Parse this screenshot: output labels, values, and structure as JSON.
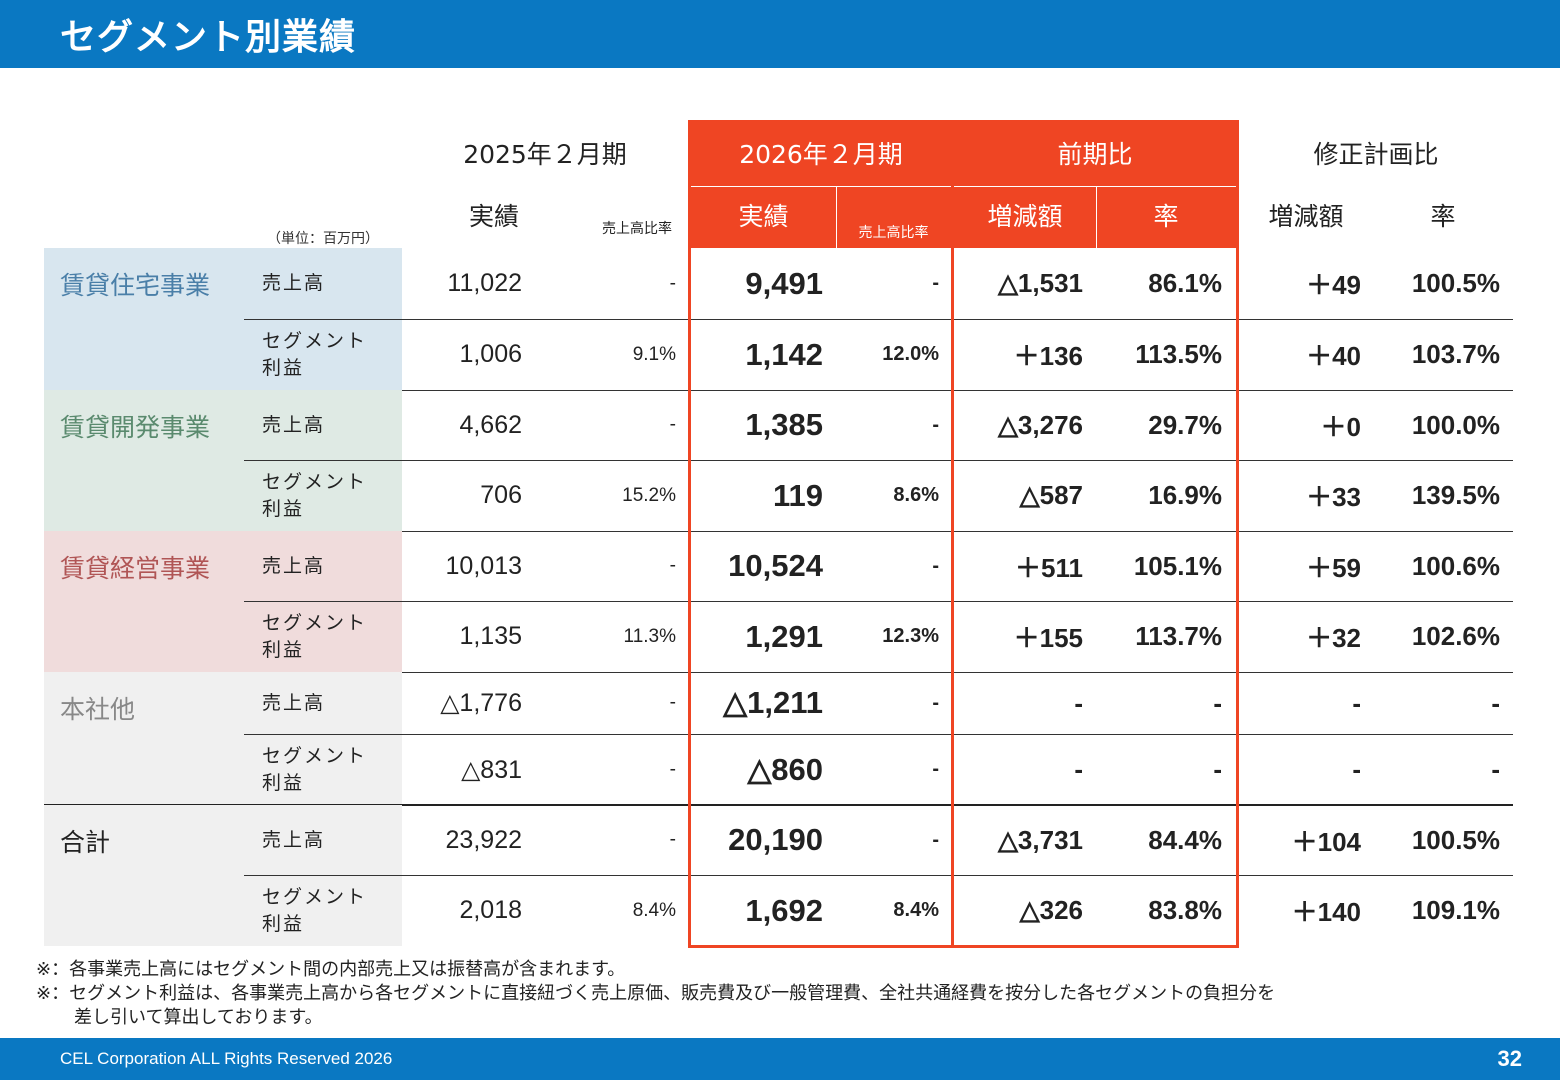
{
  "header": {
    "title": "セグメント別業績"
  },
  "table": {
    "unit": "（単位：百万円）",
    "period_headers": {
      "prev": "2025年２月期",
      "curr": "2026年２月期",
      "yoy": "前期比",
      "plan": "修正計画比"
    },
    "sub_headers": {
      "prev_actual": "実績",
      "prev_ratio": "売上高比率",
      "curr_actual": "実績",
      "curr_ratio": "売上高比率",
      "yoy_change": "増減額",
      "yoy_rate": "率",
      "plan_change": "増減額",
      "plan_rate": "率"
    },
    "segments": [
      {
        "name": "賃貸住宅事業",
        "color": "#4a7fa8",
        "bg": "#d8e6ef",
        "rows": [
          {
            "label": "売上高",
            "prev": "11,022",
            "prev_ratio": "-",
            "curr": "9,491",
            "curr_ratio": "-",
            "yoy_change": "△1,531",
            "yoy_rate": "86.1%",
            "plan_change": "＋49",
            "plan_rate": "100.5%"
          },
          {
            "label_line1": "セグメント",
            "label_line2": "利益",
            "prev": "1,006",
            "prev_ratio": "9.1%",
            "curr": "1,142",
            "curr_ratio": "12.0%",
            "yoy_change": "＋136",
            "yoy_rate": "113.5%",
            "plan_change": "＋40",
            "plan_rate": "103.7%"
          }
        ]
      },
      {
        "name": "賃貸開発事業",
        "color": "#5a8a6e",
        "bg": "#dfeae4",
        "rows": [
          {
            "label": "売上高",
            "prev": "4,662",
            "prev_ratio": "-",
            "curr": "1,385",
            "curr_ratio": "-",
            "yoy_change": "△3,276",
            "yoy_rate": "29.7%",
            "plan_change": "＋0",
            "plan_rate": "100.0%"
          },
          {
            "label_line1": "セグメント",
            "label_line2": "利益",
            "prev": "706",
            "prev_ratio": "15.2%",
            "curr": "119",
            "curr_ratio": "8.6%",
            "yoy_change": "△587",
            "yoy_rate": "16.9%",
            "plan_change": "＋33",
            "plan_rate": "139.5%"
          }
        ]
      },
      {
        "name": "賃貸経営事業",
        "color": "#b05555",
        "bg": "#f0dcdc",
        "rows": [
          {
            "label": "売上高",
            "prev": "10,013",
            "prev_ratio": "-",
            "curr": "10,524",
            "curr_ratio": "-",
            "yoy_change": "＋511",
            "yoy_rate": "105.1%",
            "plan_change": "＋59",
            "plan_rate": "100.6%"
          },
          {
            "label_line1": "セグメント",
            "label_line2": "利益",
            "prev": "1,135",
            "prev_ratio": "11.3%",
            "curr": "1,291",
            "curr_ratio": "12.3%",
            "yoy_change": "＋155",
            "yoy_rate": "113.7%",
            "plan_change": "＋32",
            "plan_rate": "102.6%"
          }
        ]
      },
      {
        "name": "本社他",
        "color": "#888888",
        "bg": "#f0f0f0",
        "rows": [
          {
            "label": "売上高",
            "prev": "△1,776",
            "prev_ratio": "-",
            "curr": "△1,211",
            "curr_ratio": "-",
            "yoy_change": "-",
            "yoy_rate": "-",
            "plan_change": "-",
            "plan_rate": "-"
          },
          {
            "label_line1": "セグメント",
            "label_line2": "利益",
            "prev": "△831",
            "prev_ratio": "-",
            "curr": "△860",
            "curr_ratio": "-",
            "yoy_change": "-",
            "yoy_rate": "-",
            "plan_change": "-",
            "plan_rate": "-"
          }
        ]
      },
      {
        "name": "合計",
        "color": "#222222",
        "bg": "#f0f0f0",
        "rows": [
          {
            "label": "売上高",
            "prev": "23,922",
            "prev_ratio": "-",
            "curr": "20,190",
            "curr_ratio": "-",
            "yoy_change": "△3,731",
            "yoy_rate": "84.4%",
            "plan_change": "＋104",
            "plan_rate": "100.5%"
          },
          {
            "label_line1": "セグメント",
            "label_line2": "利益",
            "prev": "2,018",
            "prev_ratio": "8.4%",
            "curr": "1,692",
            "curr_ratio": "8.4%",
            "yoy_change": "△326",
            "yoy_rate": "83.8%",
            "plan_change": "＋140",
            "plan_rate": "109.1%"
          }
        ]
      }
    ]
  },
  "notes": {
    "line1": "※：各事業売上高にはセグメント間の内部売上又は振替高が含まれます。",
    "line2": "※：セグメント利益は、各事業売上高から各セグメントに直接紐づく売上原価、販売費及び一般管理費、全社共通経費を按分した各セグメントの負担分を",
    "line3": "差し引いて算出しております。"
  },
  "footer": {
    "copyright": "CEL Corporation ALL Rights Reserved 2026",
    "page": "32"
  }
}
